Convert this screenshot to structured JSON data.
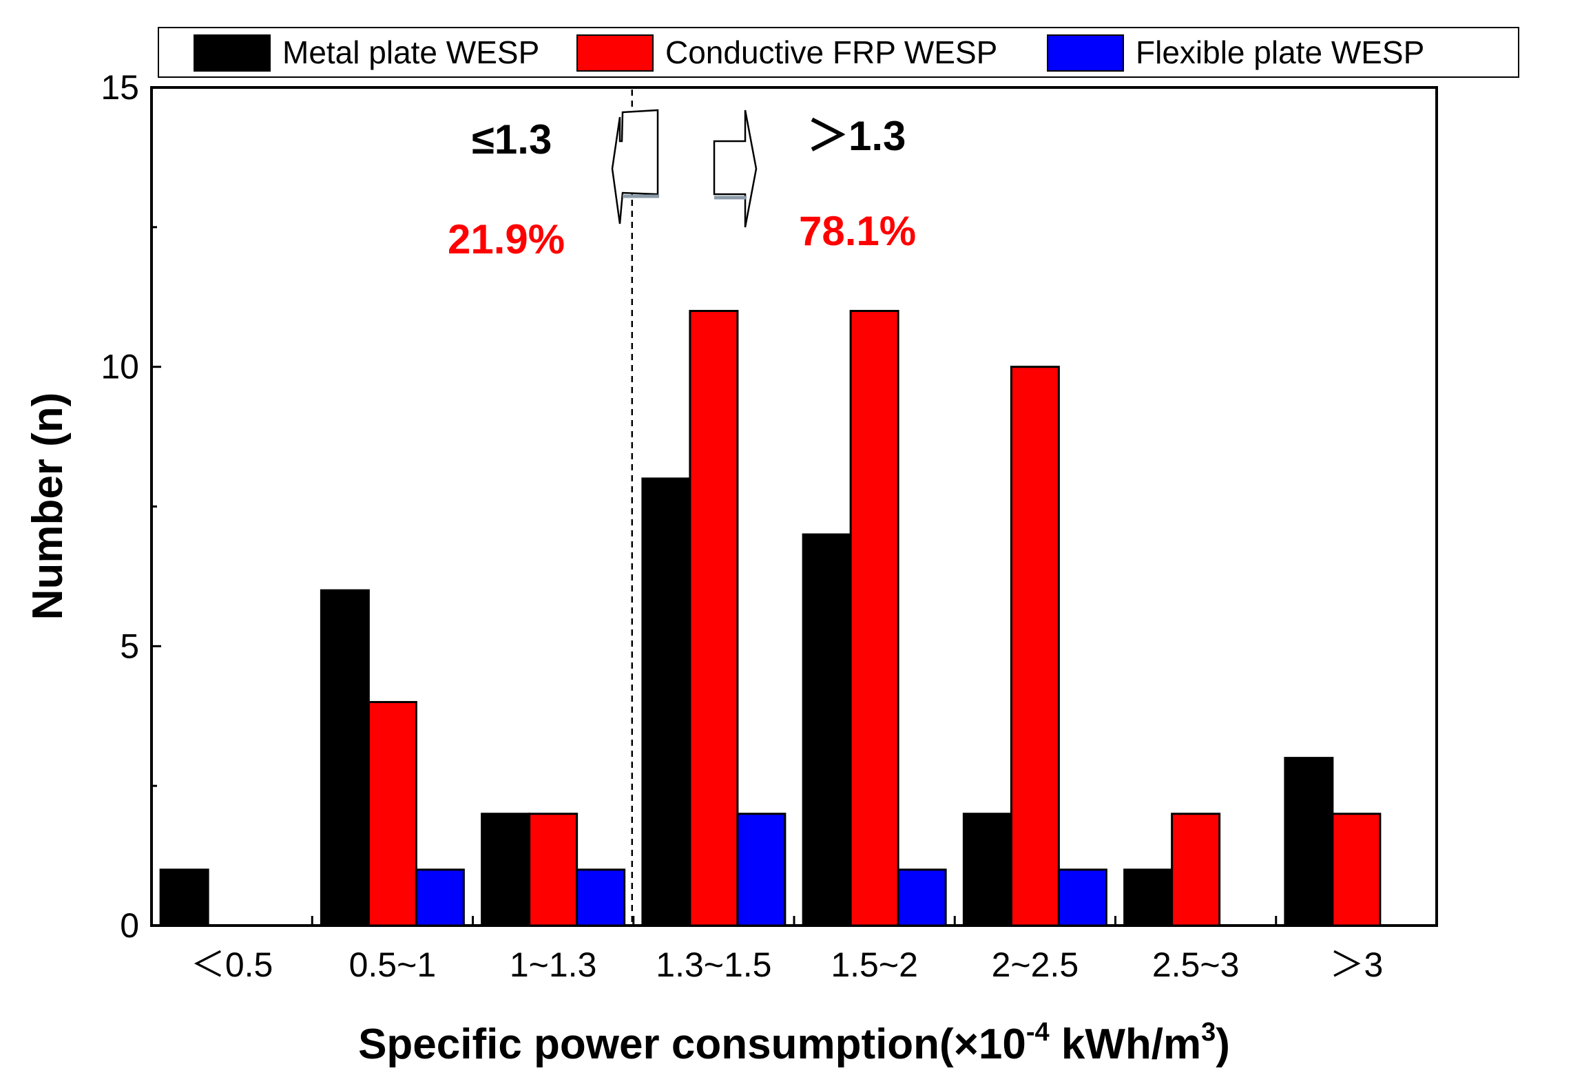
{
  "chart_data": {
    "type": "bar",
    "categories": [
      "＜0.5",
      "0.5~1",
      "1~1.3",
      "1.3~1.5",
      "1.5~2",
      "2~2.5",
      "2.5~3",
      "＞3"
    ],
    "series": [
      {
        "name": "Metal plate WESP",
        "color": "#000000",
        "values": [
          1,
          6,
          2,
          8,
          7,
          2,
          1,
          3
        ]
      },
      {
        "name": "Conductive FRP WESP",
        "color": "#ff0000",
        "values": [
          0,
          4,
          2,
          11,
          11,
          10,
          2,
          2
        ]
      },
      {
        "name": "Flexible plate WESP",
        "color": "#0000ff",
        "values": [
          0,
          1,
          1,
          2,
          1,
          1,
          0,
          0
        ]
      }
    ],
    "ylim": [
      0,
      15
    ],
    "y_major_ticks": [
      0,
      5,
      10,
      15
    ],
    "y_minor_ticks": [
      2.5,
      7.5,
      12.5
    ],
    "ylabel": "Number (n)",
    "xlabel": {
      "main": "Specific power consumption(×10",
      "exp1": "-4",
      "mid": " kWh/m",
      "exp2": "3",
      "end": ")"
    },
    "legend_position": "top",
    "divider_between": [
      "1~1.3",
      "1.3~1.5"
    ],
    "annotations": {
      "left_label": "≤1.3",
      "left_percent": "21.9%",
      "right_label": "＞1.3",
      "right_percent": "78.1%"
    }
  }
}
